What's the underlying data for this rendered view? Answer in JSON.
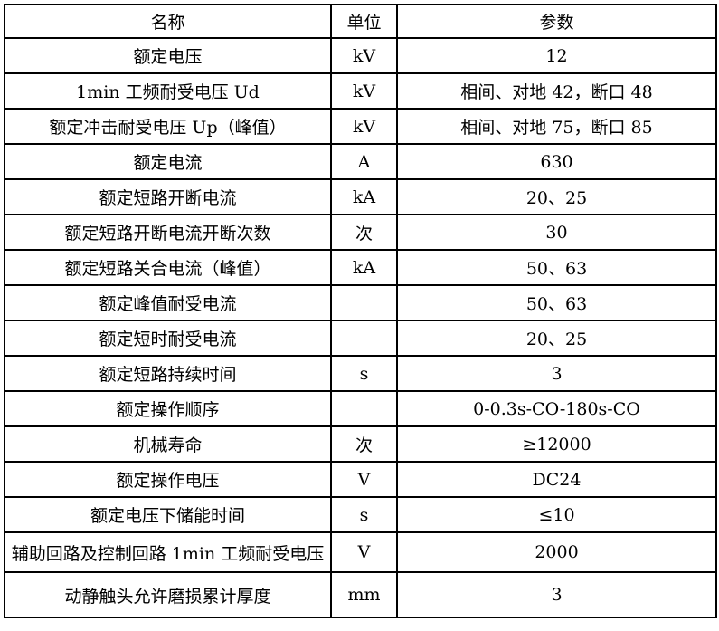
{
  "table": {
    "headers": {
      "name": "名称",
      "unit": "单位",
      "param": "参数"
    },
    "rows": [
      {
        "name": "额定电压",
        "unit": "kV",
        "value": "12"
      },
      {
        "name": "1min 工频耐受电压 Ud",
        "unit": "kV",
        "value": "相间、对地 42，断口 48"
      },
      {
        "name": "额定冲击耐受电压 Up（峰值）",
        "unit": "kV",
        "value": "相间、对地 75，断口 85"
      },
      {
        "name": "额定电流",
        "unit": "A",
        "value": "630"
      },
      {
        "name": "额定短路开断电流",
        "unit": "kA",
        "value": "20、25"
      },
      {
        "name": "额定短路开断电流开断次数",
        "unit": "次",
        "value": "30"
      },
      {
        "name": "额定短路关合电流（峰值）",
        "unit": "kA",
        "value": "50、63"
      },
      {
        "name": "额定峰值耐受电流",
        "unit": "",
        "value": "50、63"
      },
      {
        "name": "额定短时耐受电流",
        "unit": "",
        "value": "20、25"
      },
      {
        "name": "额定短路持续时间",
        "unit": "s",
        "value": "3"
      },
      {
        "name": "额定操作顺序",
        "unit": "",
        "value": "0-0.3s-CO-180s-CO"
      },
      {
        "name": "机械寿命",
        "unit": "次",
        "value": "≥12000"
      },
      {
        "name": "额定操作电压",
        "unit": "V",
        "value": "DC24"
      },
      {
        "name": "额定电压下储能时间",
        "unit": "s",
        "value": "≤10"
      },
      {
        "name": "辅助回路及控制回路 1min 工频耐受电压",
        "unit": "V",
        "value": "2000"
      },
      {
        "name": "动静触头允许磨损累计厚度",
        "unit": "mm",
        "value": "3"
      }
    ],
    "colors": {
      "border": "#000000",
      "background": "#ffffff",
      "text": "#000000"
    }
  }
}
